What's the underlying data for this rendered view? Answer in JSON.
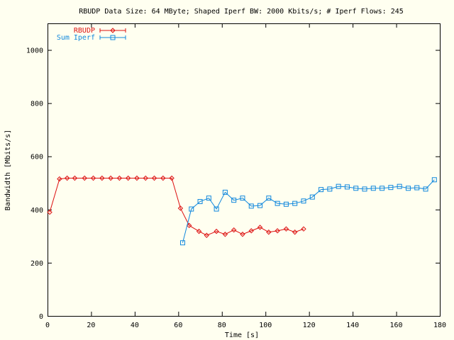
{
  "chart_data": {
    "type": "line",
    "title": "RBUDP Data Size: 64 MByte; Shaped Iperf BW: 2000 Kbits/s; # Iperf Flows: 245",
    "xlabel": "Time [s]",
    "ylabel": "Bandwidth [Mbits/s]",
    "xlim": [
      0,
      180
    ],
    "ylim": [
      0,
      1100
    ],
    "xticks": [
      0,
      20,
      40,
      60,
      80,
      100,
      120,
      140,
      160,
      180
    ],
    "yticks": [
      0,
      200,
      400,
      600,
      800,
      1000
    ],
    "grid": false,
    "legend_position": "top-left",
    "series": [
      {
        "name": "RBUDP",
        "color": "#dd1111",
        "marker": "diamond",
        "x": [
          1,
          5.5,
          9,
          12.5,
          17,
          21,
          25,
          29,
          33,
          37,
          41,
          45,
          49,
          53,
          57,
          61,
          65,
          69.5,
          73,
          77.5,
          81.5,
          85.5,
          89.5,
          93.5,
          97.5,
          101.5,
          105.5,
          109.5,
          113.5,
          117.5
        ],
        "y": [
          390,
          515,
          518,
          518,
          518,
          518,
          518,
          518,
          518,
          518,
          518,
          518,
          518,
          518,
          518,
          405,
          340,
          318,
          303,
          318,
          307,
          323,
          307,
          320,
          333,
          315,
          320,
          327,
          315,
          327
        ]
      },
      {
        "name": "Sum Iperf",
        "color": "#1188dd",
        "marker": "square",
        "x": [
          62,
          66,
          70,
          74,
          77.5,
          81.5,
          85.5,
          89.5,
          93.5,
          97.5,
          101.5,
          105.5,
          109.5,
          113.5,
          117.5,
          121.5,
          125.5,
          129.5,
          133.5,
          137.5,
          141.5,
          145.5,
          149.5,
          153.5,
          157.5,
          161.5,
          165.5,
          169.5,
          173.5,
          177.5
        ],
        "y": [
          275,
          402,
          430,
          443,
          402,
          465,
          435,
          443,
          413,
          415,
          443,
          423,
          420,
          423,
          432,
          447,
          475,
          477,
          487,
          485,
          480,
          477,
          480,
          480,
          483,
          487,
          480,
          482,
          477,
          512
        ]
      }
    ]
  }
}
